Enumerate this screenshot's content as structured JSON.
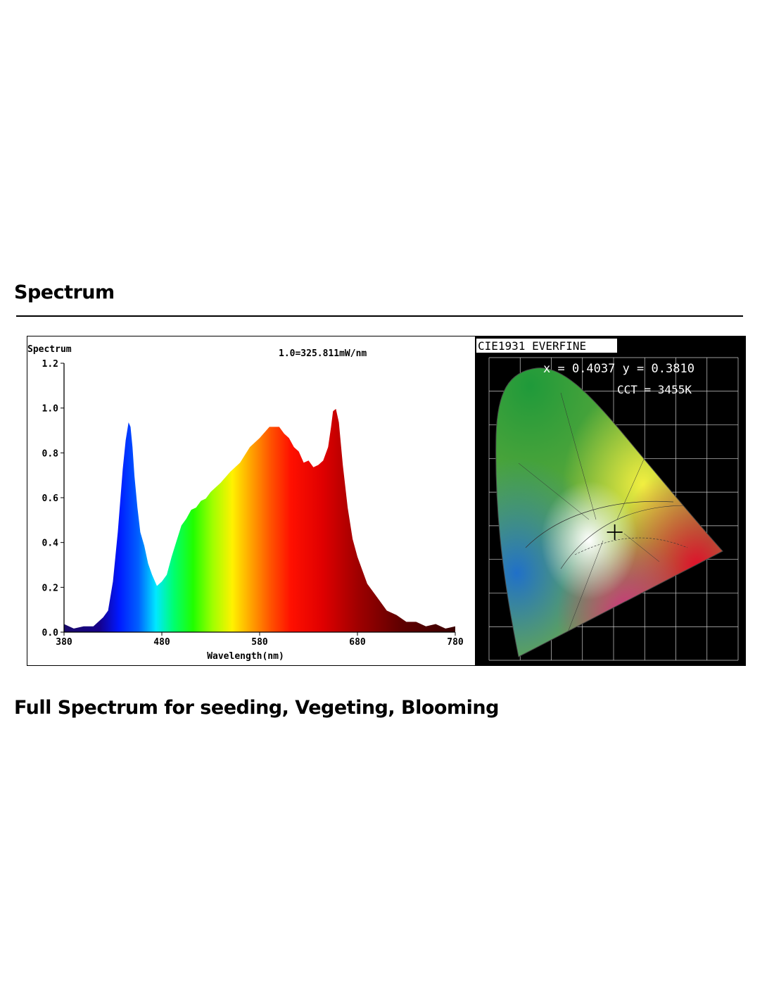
{
  "page": {
    "heading": "Spectrum",
    "subheading": "Full Spectrum for seeding, Vegeting, Blooming"
  },
  "chart_data": [
    {
      "type": "area",
      "title": "Spectrum",
      "annotation": "1.0=325.811mW/nm",
      "xlabel": "Wavelength(nm)",
      "ylabel": "",
      "xlim": [
        380,
        780
      ],
      "ylim": [
        0,
        1.2
      ],
      "x_ticks": [
        "380",
        "480",
        "580",
        "680",
        "780"
      ],
      "y_ticks": [
        "0.0",
        "0.2",
        "0.4",
        "0.6",
        "0.8",
        "1.0",
        "1.2"
      ],
      "grid": false,
      "fill": "visible-spectrum gradient",
      "series": [
        {
          "x": [
            380,
            385,
            390,
            400,
            410,
            420,
            425,
            430,
            435,
            440,
            443,
            446,
            448,
            450,
            452,
            455,
            458,
            462,
            466,
            470,
            475,
            480,
            485,
            490,
            495,
            500,
            505,
            510,
            515,
            520,
            525,
            530,
            540,
            550,
            560,
            570,
            580,
            590,
            595,
            600,
            605,
            610,
            615,
            620,
            625,
            630,
            635,
            640,
            645,
            650,
            653,
            655,
            658,
            661,
            665,
            670,
            675,
            680,
            690,
            700,
            710,
            720,
            730,
            740,
            750,
            760,
            770,
            780
          ],
          "y": [
            0.04,
            0.02,
            0.02,
            0.02,
            0.03,
            0.06,
            0.1,
            0.22,
            0.45,
            0.72,
            0.86,
            0.93,
            0.92,
            0.82,
            0.7,
            0.55,
            0.45,
            0.38,
            0.31,
            0.25,
            0.21,
            0.22,
            0.26,
            0.33,
            0.41,
            0.47,
            0.51,
            0.54,
            0.56,
            0.58,
            0.6,
            0.62,
            0.67,
            0.71,
            0.76,
            0.82,
            0.87,
            0.91,
            0.92,
            0.91,
            0.89,
            0.86,
            0.83,
            0.8,
            0.76,
            0.76,
            0.74,
            0.74,
            0.77,
            0.82,
            0.92,
            0.98,
            1.0,
            0.93,
            0.75,
            0.55,
            0.42,
            0.33,
            0.22,
            0.15,
            0.1,
            0.07,
            0.05,
            0.04,
            0.03,
            0.03,
            0.02,
            0.02
          ]
        }
      ]
    },
    {
      "type": "scatter",
      "title": "CIE1931 EVERFINE",
      "readout_xy": "x = 0.4037 y = 0.3810",
      "readout_cct": "CCT = 3455K",
      "x": [
        0.4037
      ],
      "y": [
        0.381
      ],
      "xlim": [
        0,
        0.8
      ],
      "ylim": [
        0,
        0.9
      ],
      "grid": true,
      "background": "#000000"
    }
  ]
}
